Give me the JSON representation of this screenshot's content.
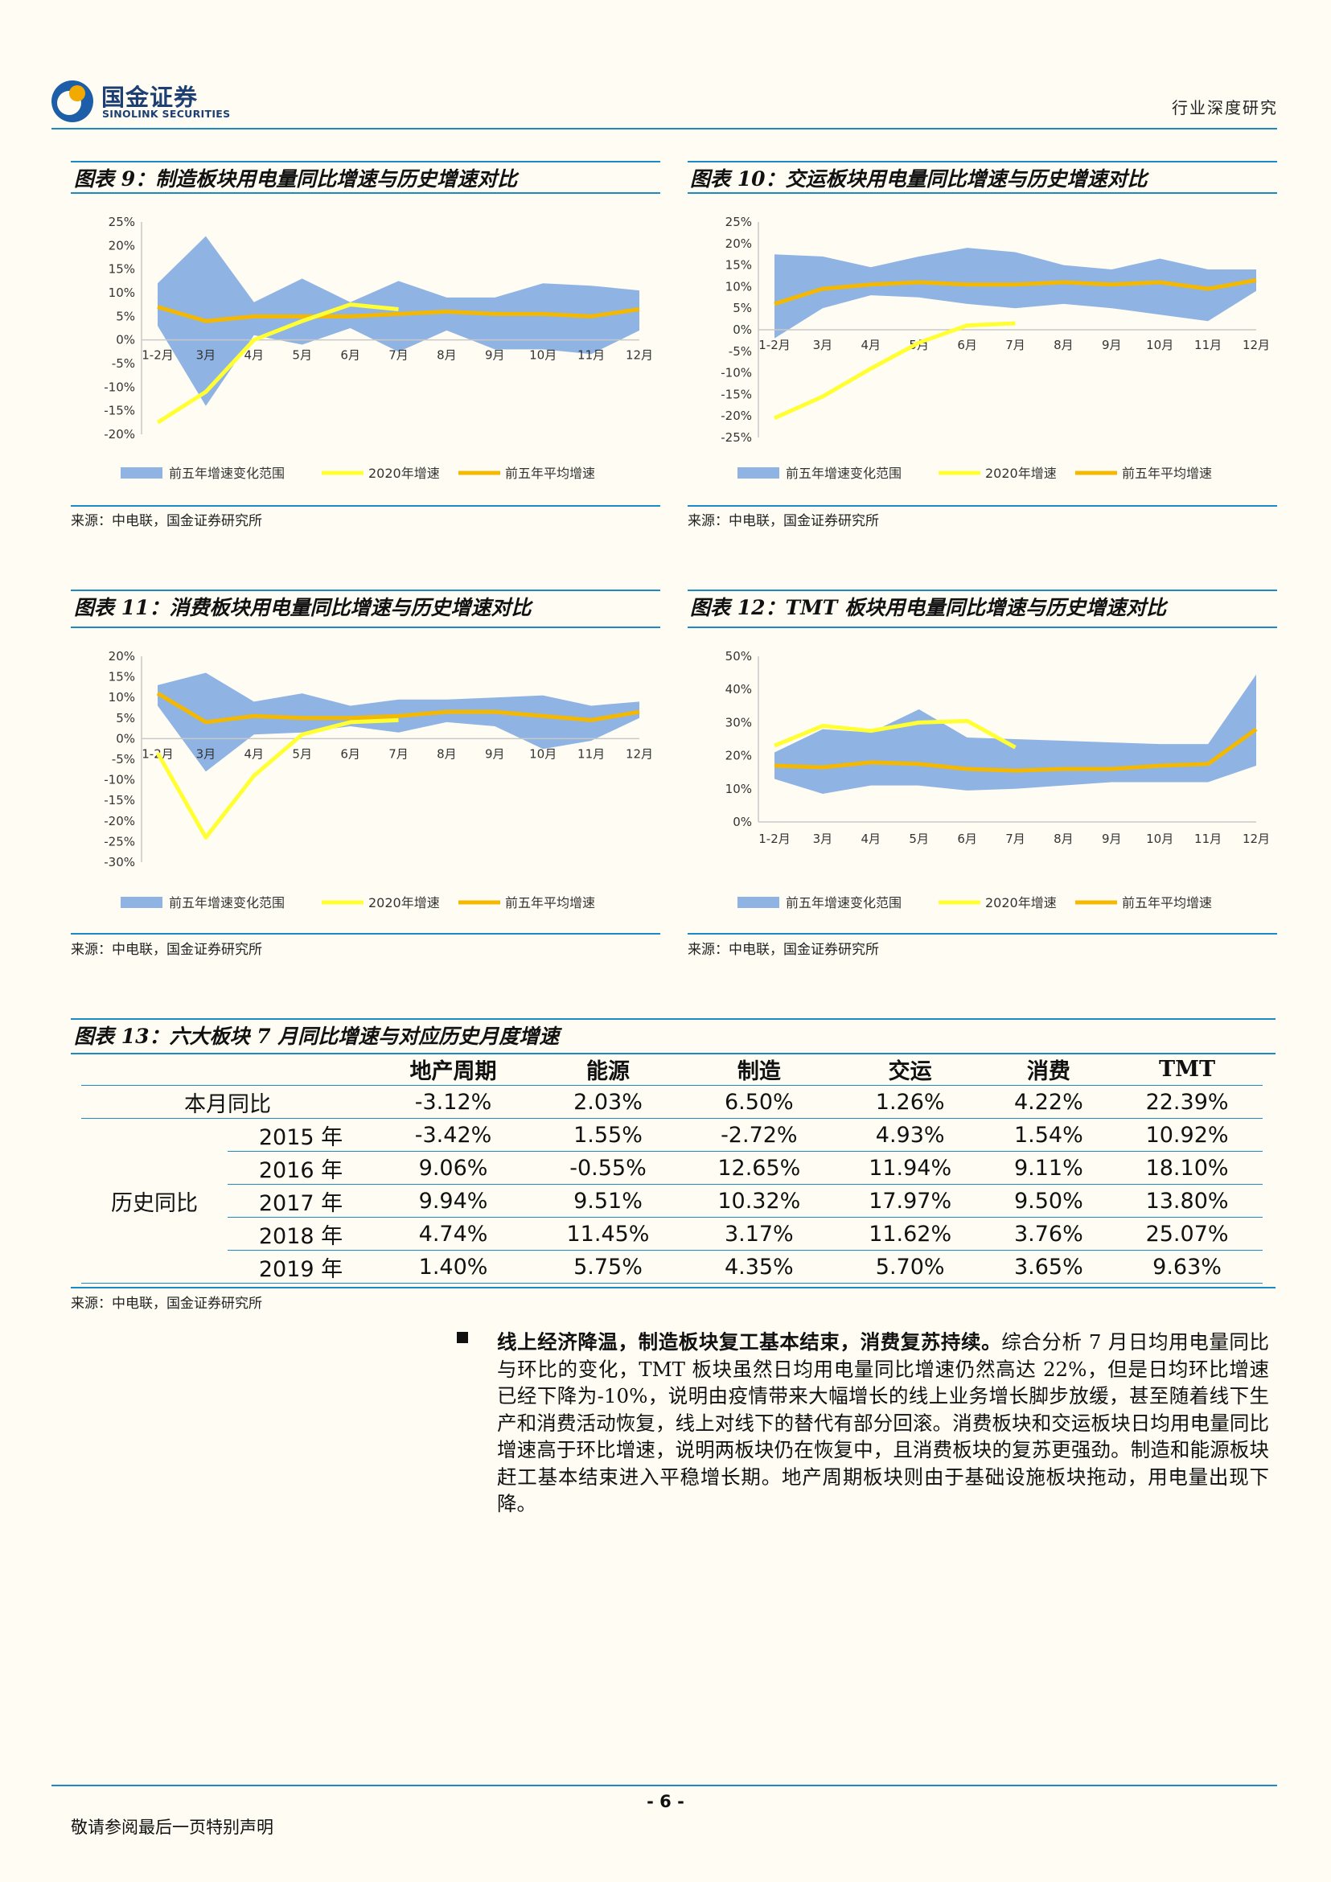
{
  "header": {
    "logo_cn": "国金证券",
    "logo_en": "SINOLINK SECURITIES",
    "section": "行业深度研究"
  },
  "colors": {
    "band": "#8fb4e4",
    "y2020": "#ffff33",
    "avg": "#f5b800",
    "rule": "#1a8bc4"
  },
  "legend": {
    "band": "前五年增速变化范围",
    "y2020": "2020年增速",
    "avg": "前五年平均增速"
  },
  "source_text": "来源：中电联，国金证券研究所",
  "chart_data": [
    {
      "type": "area",
      "title": "图表 9：制造板块用电量同比增速与历史增速对比",
      "categories": [
        "1-2月",
        "3月",
        "4月",
        "5月",
        "6月",
        "7月",
        "8月",
        "9月",
        "10月",
        "11月",
        "12月"
      ],
      "ylim": [
        -20,
        25
      ],
      "yticks": [
        -20,
        -15,
        -10,
        -5,
        0,
        5,
        10,
        15,
        20,
        25
      ],
      "band_low": [
        3,
        -14,
        1,
        -1,
        2.5,
        -2.5,
        2,
        -2,
        -2,
        -3,
        2
      ],
      "band_high": [
        12,
        22,
        8,
        13,
        8,
        12.5,
        9,
        9,
        12,
        11.5,
        10.5
      ],
      "avg": [
        7,
        4,
        5,
        5,
        5,
        5.5,
        6,
        5.5,
        5.5,
        5,
        6.5
      ],
      "y2020": [
        -17.5,
        -11,
        0,
        4,
        7.5,
        6.5
      ]
    },
    {
      "type": "area",
      "title": "图表 10：交运板块用电量同比增速与历史增速对比",
      "categories": [
        "1-2月",
        "3月",
        "4月",
        "5月",
        "6月",
        "7月",
        "8月",
        "9月",
        "10月",
        "11月",
        "12月"
      ],
      "ylim": [
        -25,
        25
      ],
      "yticks": [
        -25,
        -20,
        -15,
        -10,
        -5,
        0,
        5,
        10,
        15,
        20,
        25
      ],
      "band_low": [
        -2,
        5,
        8,
        7.5,
        6,
        5,
        6,
        5,
        3.5,
        2,
        9
      ],
      "band_high": [
        17.5,
        17,
        14.5,
        17,
        19,
        18,
        15,
        14,
        16.5,
        14,
        14
      ],
      "avg": [
        6,
        9.5,
        10.5,
        11,
        10.5,
        10.5,
        11,
        10.5,
        11,
        9.5,
        11.5
      ],
      "y2020": [
        -20.5,
        -15.5,
        -9,
        -3,
        1,
        1.5
      ]
    },
    {
      "type": "area",
      "title": "图表 11：消费板块用电量同比增速与历史增速对比",
      "categories": [
        "1-2月",
        "3月",
        "4月",
        "5月",
        "6月",
        "7月",
        "8月",
        "9月",
        "10月",
        "11月",
        "12月"
      ],
      "ylim": [
        -30,
        20
      ],
      "yticks": [
        -30,
        -25,
        -20,
        -15,
        -10,
        -5,
        0,
        5,
        10,
        15,
        20
      ],
      "band_low": [
        8,
        -8,
        1,
        1.5,
        3,
        1.5,
        4,
        3,
        -2.5,
        -0.5,
        5
      ],
      "band_high": [
        13,
        16,
        9,
        11,
        8,
        9.5,
        9.5,
        10,
        10.5,
        8,
        9
      ],
      "avg": [
        11,
        4,
        5.5,
        5,
        5,
        5.5,
        6.5,
        6.5,
        5.5,
        4.5,
        6.5
      ],
      "y2020": [
        -3.5,
        -24,
        -9,
        1,
        4,
        4.5
      ]
    },
    {
      "type": "area",
      "title": "图表 12：TMT 板块用电量同比增速与历史增速对比",
      "categories": [
        "1-2月",
        "3月",
        "4月",
        "5月",
        "6月",
        "7月",
        "8月",
        "9月",
        "10月",
        "11月",
        "12月"
      ],
      "ylim": [
        0,
        50
      ],
      "yticks": [
        0,
        10,
        20,
        30,
        40,
        50
      ],
      "band_low": [
        13,
        8.5,
        11,
        11,
        9.5,
        10,
        11,
        12,
        12,
        12,
        17
      ],
      "band_high": [
        21,
        28,
        27,
        34,
        25.5,
        25,
        24.5,
        24,
        23.5,
        23.5,
        44.5
      ],
      "avg": [
        17,
        16.5,
        18,
        17.5,
        16,
        15.5,
        16,
        16,
        17,
        17.5,
        28
      ],
      "y2020": [
        23,
        29,
        27.5,
        30,
        30.5,
        22.5
      ]
    },
    {
      "type": "table",
      "title": "图表 13：六大板块 7 月同比增速与对应历史月度增速",
      "columns": [
        "地产周期",
        "能源",
        "制造",
        "交运",
        "消费",
        "TMT"
      ],
      "current_label": "本月同比",
      "current": [
        "-3.12%",
        "2.03%",
        "6.50%",
        "1.26%",
        "4.22%",
        "22.39%"
      ],
      "history_label": "历史同比",
      "history": [
        {
          "year": "2015 年",
          "values": [
            "-3.42%",
            "1.55%",
            "-2.72%",
            "4.93%",
            "1.54%",
            "10.92%"
          ]
        },
        {
          "year": "2016 年",
          "values": [
            "9.06%",
            "-0.55%",
            "12.65%",
            "11.94%",
            "9.11%",
            "18.10%"
          ]
        },
        {
          "year": "2017 年",
          "values": [
            "9.94%",
            "9.51%",
            "10.32%",
            "17.97%",
            "9.50%",
            "13.80%"
          ]
        },
        {
          "year": "2018 年",
          "values": [
            "4.74%",
            "11.45%",
            "3.17%",
            "11.62%",
            "3.76%",
            "25.07%"
          ]
        },
        {
          "year": "2019 年",
          "values": [
            "1.40%",
            "5.75%",
            "4.35%",
            "5.70%",
            "3.65%",
            "9.63%"
          ]
        }
      ]
    }
  ],
  "paragraph": {
    "lead": "线上经济降温，制造板块复工基本结束，消费复苏持续。",
    "body": "综合分析 7 月日均用电量同比与环比的变化，TMT 板块虽然日均用电量同比增速仍然高达 22%，但是日均环比增速已经下降为-10%，说明由疫情带来大幅增长的线上业务增长脚步放缓，甚至随着线下生产和消费活动恢复，线上对线下的替代有部分回滚。消费板块和交运板块日均用电量同比增速高于环比增速，说明两板块仍在恢复中，且消费板块的复苏更强劲。制造和能源板块赶工基本结束进入平稳增长期。地产周期板块则由于基础设施板块拖动，用电量出现下降。"
  },
  "footer": {
    "page": "- 6 -",
    "note": "敬请参阅最后一页特别声明"
  }
}
